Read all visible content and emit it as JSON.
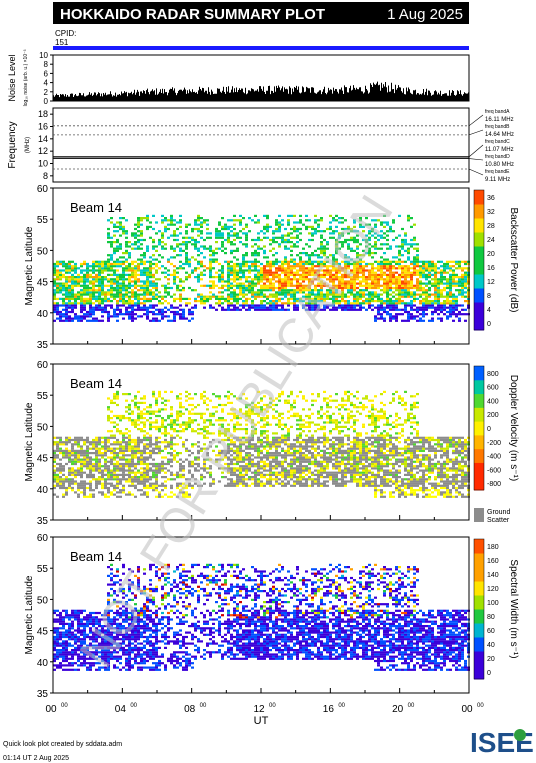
{
  "header": {
    "title": "HOKKAIDO RADAR SUMMARY PLOT",
    "date": "1 Aug 2025",
    "cpid_label": "CPID:",
    "cpid_value": "151"
  },
  "noise": {
    "ylabel_main": "Noise Level",
    "ylabel_sub": "log₁₀ noise (arb. u.) ×10⁻³",
    "yticks": [
      "0",
      "2",
      "4",
      "6",
      "8",
      "10"
    ]
  },
  "frequency": {
    "ylabel": "Frequency",
    "yunit": "(MHz)",
    "yticks": [
      "8",
      "10",
      "12",
      "14",
      "16",
      "18"
    ],
    "bands": [
      {
        "label": "freq bandA",
        "value": "16.11 MHz",
        "f": 16.11
      },
      {
        "label": "freq bandB",
        "value": "14.64 MHz",
        "f": 14.64
      },
      {
        "label": "freq bandC",
        "value": "11.07 MHz",
        "f": 11.07
      },
      {
        "label": "freq bandD",
        "value": "10.80 MHz",
        "f": 10.8
      },
      {
        "label": "freq bandE",
        "value": "9.11 MHz",
        "f": 9.11
      }
    ]
  },
  "panels": [
    {
      "beam": "Beam 14",
      "ylabel": "Magnetic Latitude",
      "cbar_label": "Backscatter Power (dB)",
      "cbar_ticks": [
        "0",
        "4",
        "8",
        "12",
        "16",
        "20",
        "24",
        "28",
        "32",
        "36"
      ]
    },
    {
      "beam": "Beam 14",
      "ylabel": "Magnetic Latitude",
      "cbar_label": "Doppler Velocity (m s⁻¹)",
      "cbar_ticks": [
        "-800",
        "-600",
        "-400",
        "-200",
        "0",
        "200",
        "400",
        "600",
        "800"
      ],
      "ground_label_1": "Ground",
      "ground_label_2": "Scatter"
    },
    {
      "beam": "Beam 14",
      "ylabel": "Magnetic Latitude",
      "cbar_label": "Spectral Width (m s⁻¹)",
      "cbar_ticks": [
        "0",
        "20",
        "40",
        "60",
        "80",
        "100",
        "120",
        "140",
        "160",
        "180"
      ]
    }
  ],
  "xaxis": {
    "label": "UT",
    "ticks": [
      "00",
      "04",
      "08",
      "12",
      "16",
      "20",
      "00"
    ],
    "tick_sup": "00"
  },
  "watermark": "NOT FOR PUBLICATION",
  "footer": {
    "line1": "Quick look plot created by sddata.adm",
    "line2": "01:14 UT  2 Aug 2025"
  },
  "logo": "ISEE",
  "colors": {
    "header_bg": "#000000",
    "cpid_bar": "#1a1aff",
    "noise_fill": "#000000",
    "ground_scatter": "#8c8c8c",
    "watermark": "#bdbdbd"
  },
  "chart_data": [
    {
      "type": "area",
      "title": "Noise Level",
      "xlabel": "UT",
      "ylabel": "Noise Level",
      "x_range_hours": [
        0,
        24
      ],
      "ylim": [
        0,
        10
      ],
      "x": [
        0,
        2,
        4,
        6,
        8,
        10,
        12,
        14,
        16,
        18,
        19,
        20,
        22,
        24
      ],
      "values": [
        1.2,
        1.5,
        1.8,
        2.2,
        2.4,
        2.5,
        2.6,
        2.6,
        2.5,
        2.8,
        3.5,
        2.6,
        2.0,
        1.8
      ]
    },
    {
      "type": "scatter",
      "title": "Frequency",
      "ylabel": "Frequency (MHz)",
      "ylim": [
        7,
        19
      ],
      "series": [
        {
          "name": "freq bandA",
          "value": 16.11
        },
        {
          "name": "freq bandB",
          "value": 14.64
        },
        {
          "name": "freq bandC",
          "value": 11.07
        },
        {
          "name": "freq bandD",
          "value": 10.8
        },
        {
          "name": "freq bandE",
          "value": 9.11
        }
      ]
    },
    {
      "type": "heatmap",
      "title": "Backscatter Power",
      "ylabel": "Magnetic Latitude",
      "xlabel": "UT",
      "ylim": [
        35,
        60
      ],
      "x_range_hours": [
        0,
        24
      ],
      "clim": [
        0,
        36
      ],
      "unit": "dB"
    },
    {
      "type": "heatmap",
      "title": "Doppler Velocity",
      "ylabel": "Magnetic Latitude",
      "xlabel": "UT",
      "ylim": [
        35,
        60
      ],
      "x_range_hours": [
        0,
        24
      ],
      "clim": [
        -800,
        800
      ],
      "unit": "m s-1"
    },
    {
      "type": "heatmap",
      "title": "Spectral Width",
      "ylabel": "Magnetic Latitude",
      "xlabel": "UT",
      "ylim": [
        35,
        60
      ],
      "x_range_hours": [
        0,
        24
      ],
      "clim": [
        0,
        180
      ],
      "unit": "m s-1"
    }
  ]
}
